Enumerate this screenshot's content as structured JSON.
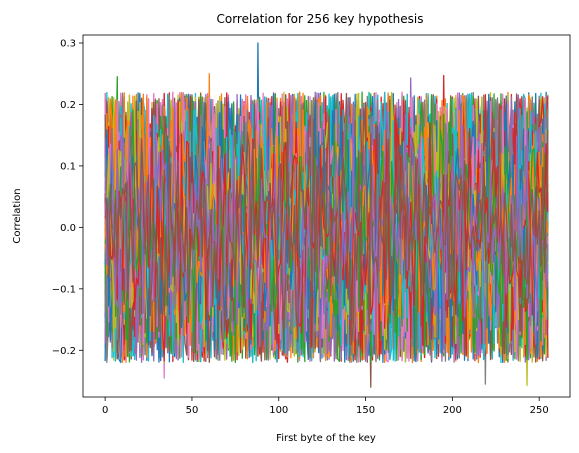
{
  "chart_data": {
    "type": "line",
    "title": "Correlation for 256 key hypothesis",
    "xlabel": "First byte of the key",
    "ylabel": "Correlation",
    "xlim": [
      -12.75,
      267.75
    ],
    "ylim": [
      -0.276,
      0.313
    ],
    "x_ticks": [
      0,
      50,
      100,
      150,
      200,
      250
    ],
    "x_tick_labels": [
      "0",
      "50",
      "100",
      "150",
      "200",
      "250"
    ],
    "y_ticks": [
      -0.2,
      -0.1,
      0.0,
      0.1,
      0.2,
      0.3
    ],
    "y_tick_labels": [
      "−0.2",
      "−0.1",
      "0.0",
      "0.1",
      "0.2",
      "0.3"
    ],
    "grid": false,
    "legend": "none",
    "series_count": 256,
    "x_range": [
      0,
      255
    ],
    "value_range": [
      -0.26,
      0.3
    ],
    "notable_points": [
      {
        "x": 88,
        "y": 0.3
      },
      {
        "x": 60,
        "y": 0.25
      },
      {
        "x": 7,
        "y": 0.245
      },
      {
        "x": 195,
        "y": 0.247
      },
      {
        "x": 176,
        "y": 0.243
      },
      {
        "x": 153,
        "y": -0.26
      },
      {
        "x": 34,
        "y": -0.245
      },
      {
        "x": 219,
        "y": -0.255
      },
      {
        "x": 243,
        "y": -0.257
      }
    ],
    "colors": [
      "#1f77b4",
      "#ff7f0e",
      "#2ca02c",
      "#d62728",
      "#9467bd",
      "#8c564b",
      "#e377c2",
      "#7f7f7f",
      "#bcbd22",
      "#17becf"
    ]
  }
}
